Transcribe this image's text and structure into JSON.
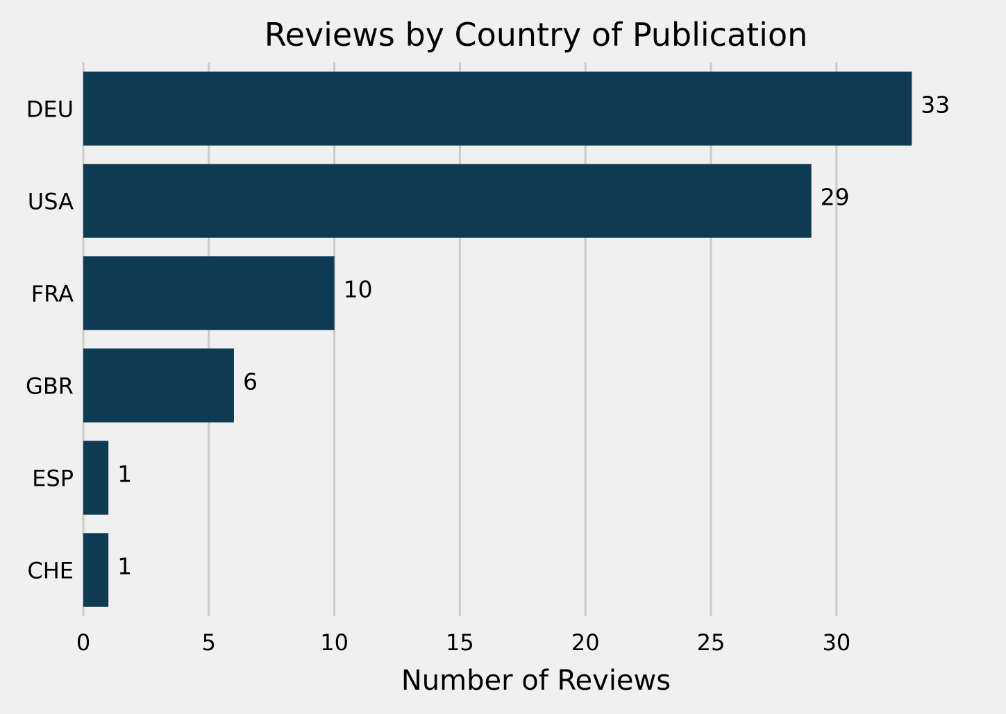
{
  "chart_data": {
    "type": "bar",
    "orientation": "horizontal",
    "title": "Reviews by Country of Publication",
    "xlabel": "Number of Reviews",
    "ylabel": "",
    "categories": [
      "DEU",
      "USA",
      "FRA",
      "GBR",
      "ESP",
      "CHE"
    ],
    "values": [
      33,
      29,
      10,
      6,
      1,
      1
    ],
    "xlim": [
      0,
      34.9
    ],
    "xticks": [
      0,
      5,
      10,
      15,
      20,
      25,
      30
    ],
    "grid": true,
    "bar_color": "#0e3a52",
    "background_color": "#f0f0f0",
    "grid_color": "#cbcbcb"
  }
}
